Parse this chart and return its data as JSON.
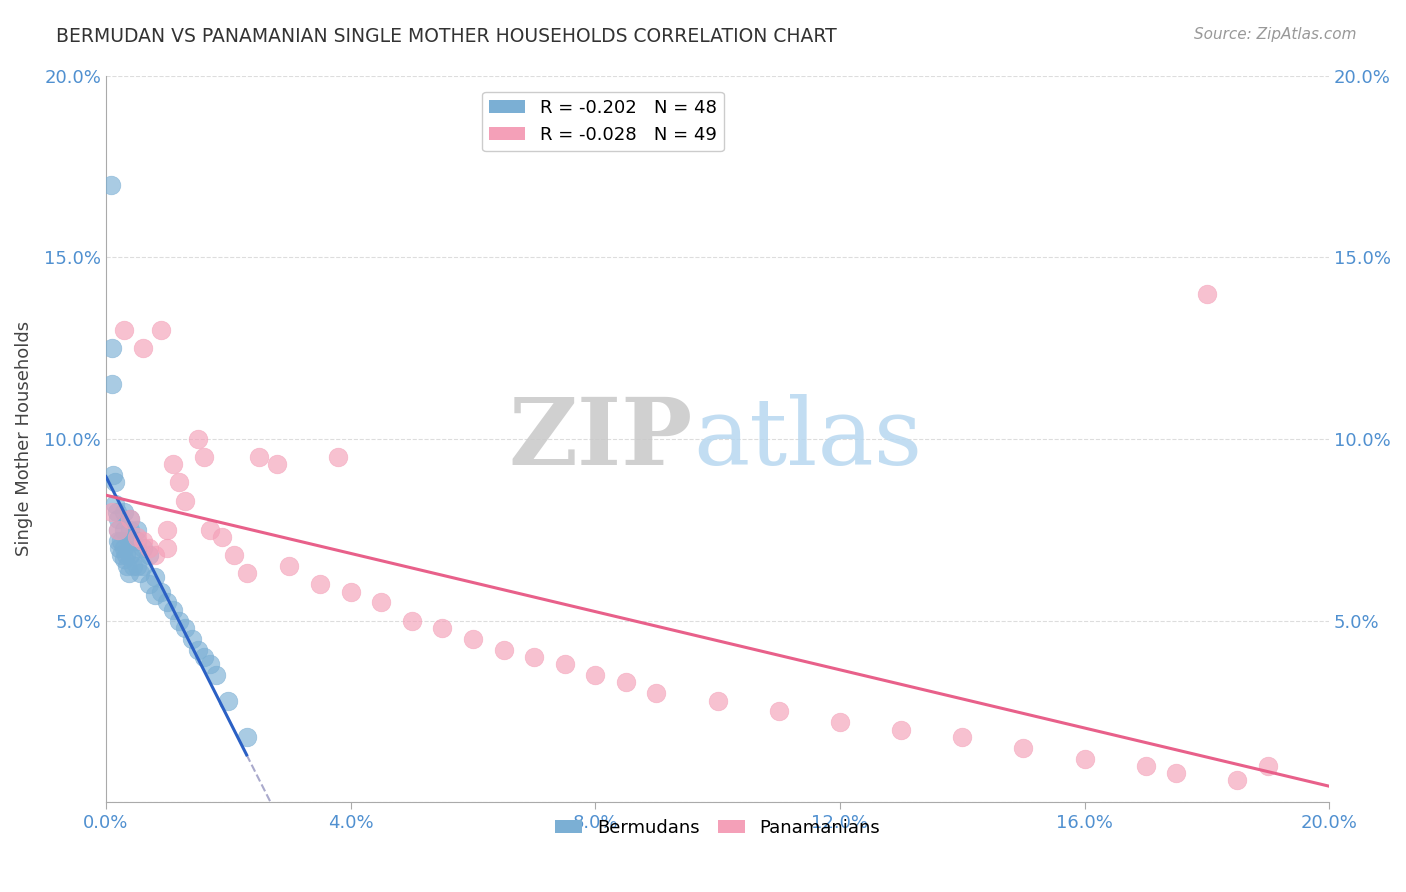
{
  "title": "BERMUDAN VS PANAMANIAN SINGLE MOTHER HOUSEHOLDS CORRELATION CHART",
  "source": "Source: ZipAtlas.com",
  "ylabel": "Single Mother Households",
  "xlim": [
    0.0,
    0.2
  ],
  "ylim": [
    0.0,
    0.2
  ],
  "xtick_vals": [
    0.0,
    0.04,
    0.08,
    0.12,
    0.16,
    0.2
  ],
  "xtick_labels": [
    "0.0%",
    "4.0%",
    "8.0%",
    "12.0%",
    "16.0%",
    "20.0%"
  ],
  "ytick_vals": [
    0.0,
    0.05,
    0.1,
    0.15,
    0.2
  ],
  "ytick_labels": [
    "",
    "5.0%",
    "10.0%",
    "15.0%",
    "20.0%"
  ],
  "bermudan_R": -0.202,
  "bermudan_N": 48,
  "panamanian_R": -0.028,
  "panamanian_N": 49,
  "bermuda_color": "#7BAFD4",
  "panama_color": "#F4A0B8",
  "bermuda_line_color": "#2B60C4",
  "panama_line_color": "#E8608A",
  "dashed_line_color": "#AAAACC",
  "background_color": "#FFFFFF",
  "grid_color": "#DDDDDD",
  "tick_color": "#5090D0",
  "watermark_zip": "ZIP",
  "watermark_atlas": "atlas",
  "bermuda_x": [
    0.0008,
    0.001,
    0.001,
    0.0012,
    0.0015,
    0.0015,
    0.0018,
    0.002,
    0.002,
    0.002,
    0.0022,
    0.0025,
    0.0025,
    0.003,
    0.003,
    0.003,
    0.003,
    0.0032,
    0.0035,
    0.0038,
    0.004,
    0.004,
    0.004,
    0.004,
    0.0045,
    0.005,
    0.005,
    0.005,
    0.005,
    0.0055,
    0.006,
    0.006,
    0.007,
    0.007,
    0.008,
    0.008,
    0.009,
    0.01,
    0.011,
    0.012,
    0.013,
    0.014,
    0.015,
    0.016,
    0.017,
    0.018,
    0.02,
    0.023
  ],
  "bermuda_y": [
    0.17,
    0.125,
    0.115,
    0.09,
    0.088,
    0.082,
    0.08,
    0.078,
    0.075,
    0.072,
    0.07,
    0.072,
    0.068,
    0.08,
    0.075,
    0.07,
    0.067,
    0.068,
    0.065,
    0.063,
    0.078,
    0.075,
    0.072,
    0.068,
    0.065,
    0.075,
    0.072,
    0.07,
    0.065,
    0.063,
    0.07,
    0.065,
    0.068,
    0.06,
    0.062,
    0.057,
    0.058,
    0.055,
    0.053,
    0.05,
    0.048,
    0.045,
    0.042,
    0.04,
    0.038,
    0.035,
    0.028,
    0.018
  ],
  "panama_x": [
    0.001,
    0.002,
    0.003,
    0.004,
    0.005,
    0.006,
    0.006,
    0.007,
    0.008,
    0.009,
    0.01,
    0.01,
    0.011,
    0.012,
    0.013,
    0.015,
    0.016,
    0.017,
    0.019,
    0.021,
    0.023,
    0.025,
    0.028,
    0.03,
    0.035,
    0.038,
    0.04,
    0.045,
    0.05,
    0.055,
    0.06,
    0.065,
    0.07,
    0.075,
    0.08,
    0.085,
    0.09,
    0.1,
    0.11,
    0.12,
    0.13,
    0.14,
    0.15,
    0.16,
    0.17,
    0.175,
    0.18,
    0.185,
    0.19
  ],
  "panama_y": [
    0.08,
    0.075,
    0.13,
    0.078,
    0.073,
    0.125,
    0.072,
    0.07,
    0.068,
    0.13,
    0.075,
    0.07,
    0.093,
    0.088,
    0.083,
    0.1,
    0.095,
    0.075,
    0.073,
    0.068,
    0.063,
    0.095,
    0.093,
    0.065,
    0.06,
    0.095,
    0.058,
    0.055,
    0.05,
    0.048,
    0.045,
    0.042,
    0.04,
    0.038,
    0.035,
    0.033,
    0.03,
    0.028,
    0.025,
    0.022,
    0.02,
    0.018,
    0.015,
    0.012,
    0.01,
    0.008,
    0.14,
    0.006,
    0.01
  ]
}
